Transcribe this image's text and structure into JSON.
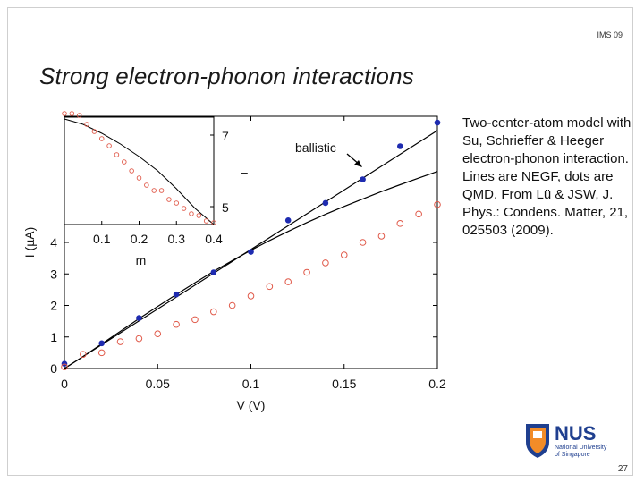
{
  "header": {
    "tag": "IMS 09",
    "title": "Strong electron-phonon interactions"
  },
  "description": "Two-center-atom model with Su, Schrieffer & Heeger electron-phonon interaction.  Lines are NEGF, dots are QMD. From Lü & JSW, J. Phys.: Condens. Matter, 21, 025503 (2009).",
  "page_number": "27",
  "logo": {
    "text": "NUS",
    "subtitle_line1": "National University",
    "subtitle_line2": "of Singapore",
    "color": "#1f3f8f",
    "accent": "#f28c28"
  },
  "chart_data": [
    {
      "type": "scatter",
      "title": "",
      "xlabel": "V (V)",
      "ylabel": "I (µA)",
      "xlim": [
        0,
        0.2
      ],
      "ylim": [
        0,
        8
      ],
      "xticks": [
        "0",
        "0.05",
        "0.1",
        "0.15",
        "0.2"
      ],
      "yticks": [
        "0",
        "1",
        "2",
        "3",
        "4"
      ],
      "annotation": "ballistic",
      "colors": {
        "dots_filled": "#1e2bb0",
        "dots_open": "#e05a4a",
        "lines": "#000000"
      },
      "series": [
        {
          "style": "line",
          "x": [
            0,
            0.2
          ],
          "y": [
            0,
            7.55
          ]
        },
        {
          "style": "line",
          "x": [
            0,
            0.01,
            0.02,
            0.03,
            0.04,
            0.05,
            0.06,
            0.07,
            0.08,
            0.09,
            0.1,
            0.11,
            0.12,
            0.13,
            0.14,
            0.15,
            0.16,
            0.17,
            0.18,
            0.19,
            0.2
          ],
          "y": [
            0,
            0.38,
            0.78,
            1.18,
            1.58,
            1.97,
            2.35,
            2.72,
            3.08,
            3.42,
            3.75,
            4.06,
            4.35,
            4.63,
            4.89,
            5.14,
            5.38,
            5.61,
            5.83,
            6.04,
            6.25
          ]
        },
        {
          "style": "filled-dots",
          "x": [
            0,
            0.02,
            0.04,
            0.06,
            0.08,
            0.1,
            0.12,
            0.14,
            0.16,
            0.18,
            0.2
          ],
          "y": [
            0.15,
            0.8,
            1.6,
            2.35,
            3.05,
            3.7,
            4.7,
            5.25,
            6.0,
            7.05,
            7.8
          ]
        },
        {
          "style": "open-dots",
          "x": [
            0,
            0.01,
            0.02,
            0.03,
            0.04,
            0.05,
            0.06,
            0.07,
            0.08,
            0.09,
            0.1,
            0.11,
            0.12,
            0.13,
            0.14,
            0.15,
            0.16,
            0.17,
            0.18,
            0.19,
            0.2
          ],
          "y": [
            0.05,
            0.45,
            0.5,
            0.85,
            0.95,
            1.1,
            1.4,
            1.55,
            1.8,
            2.0,
            2.3,
            2.6,
            2.75,
            3.05,
            3.35,
            3.6,
            4.0,
            4.2,
            4.6,
            4.9,
            5.2
          ]
        }
      ]
    },
    {
      "type": "scatter",
      "title": "",
      "xlabel": "m",
      "ylabel": "",
      "xlim": [
        0,
        0.4
      ],
      "ylim": [
        4.5,
        7.5
      ],
      "xticks": [
        "0.1",
        "0.2",
        "0.3",
        "0.4"
      ],
      "yticks": [
        "5",
        "7"
      ],
      "tick_mark_label": "–",
      "series": [
        {
          "style": "line",
          "x": [
            0,
            0.05,
            0.1,
            0.15,
            0.2,
            0.25,
            0.3,
            0.35,
            0.4
          ],
          "y": [
            7.45,
            7.3,
            7.05,
            6.75,
            6.4,
            6.0,
            5.5,
            4.95,
            4.5
          ]
        },
        {
          "style": "open-dots",
          "x": [
            0,
            0.02,
            0.04,
            0.06,
            0.08,
            0.1,
            0.12,
            0.14,
            0.16,
            0.18,
            0.2,
            0.22,
            0.24,
            0.26,
            0.28,
            0.3,
            0.32,
            0.34,
            0.36,
            0.38,
            0.4
          ],
          "y": [
            7.6,
            7.6,
            7.55,
            7.3,
            7.1,
            6.9,
            6.7,
            6.45,
            6.25,
            6.0,
            5.8,
            5.6,
            5.45,
            5.45,
            5.2,
            5.1,
            4.95,
            4.8,
            4.75,
            4.6,
            4.55
          ]
        }
      ]
    }
  ]
}
